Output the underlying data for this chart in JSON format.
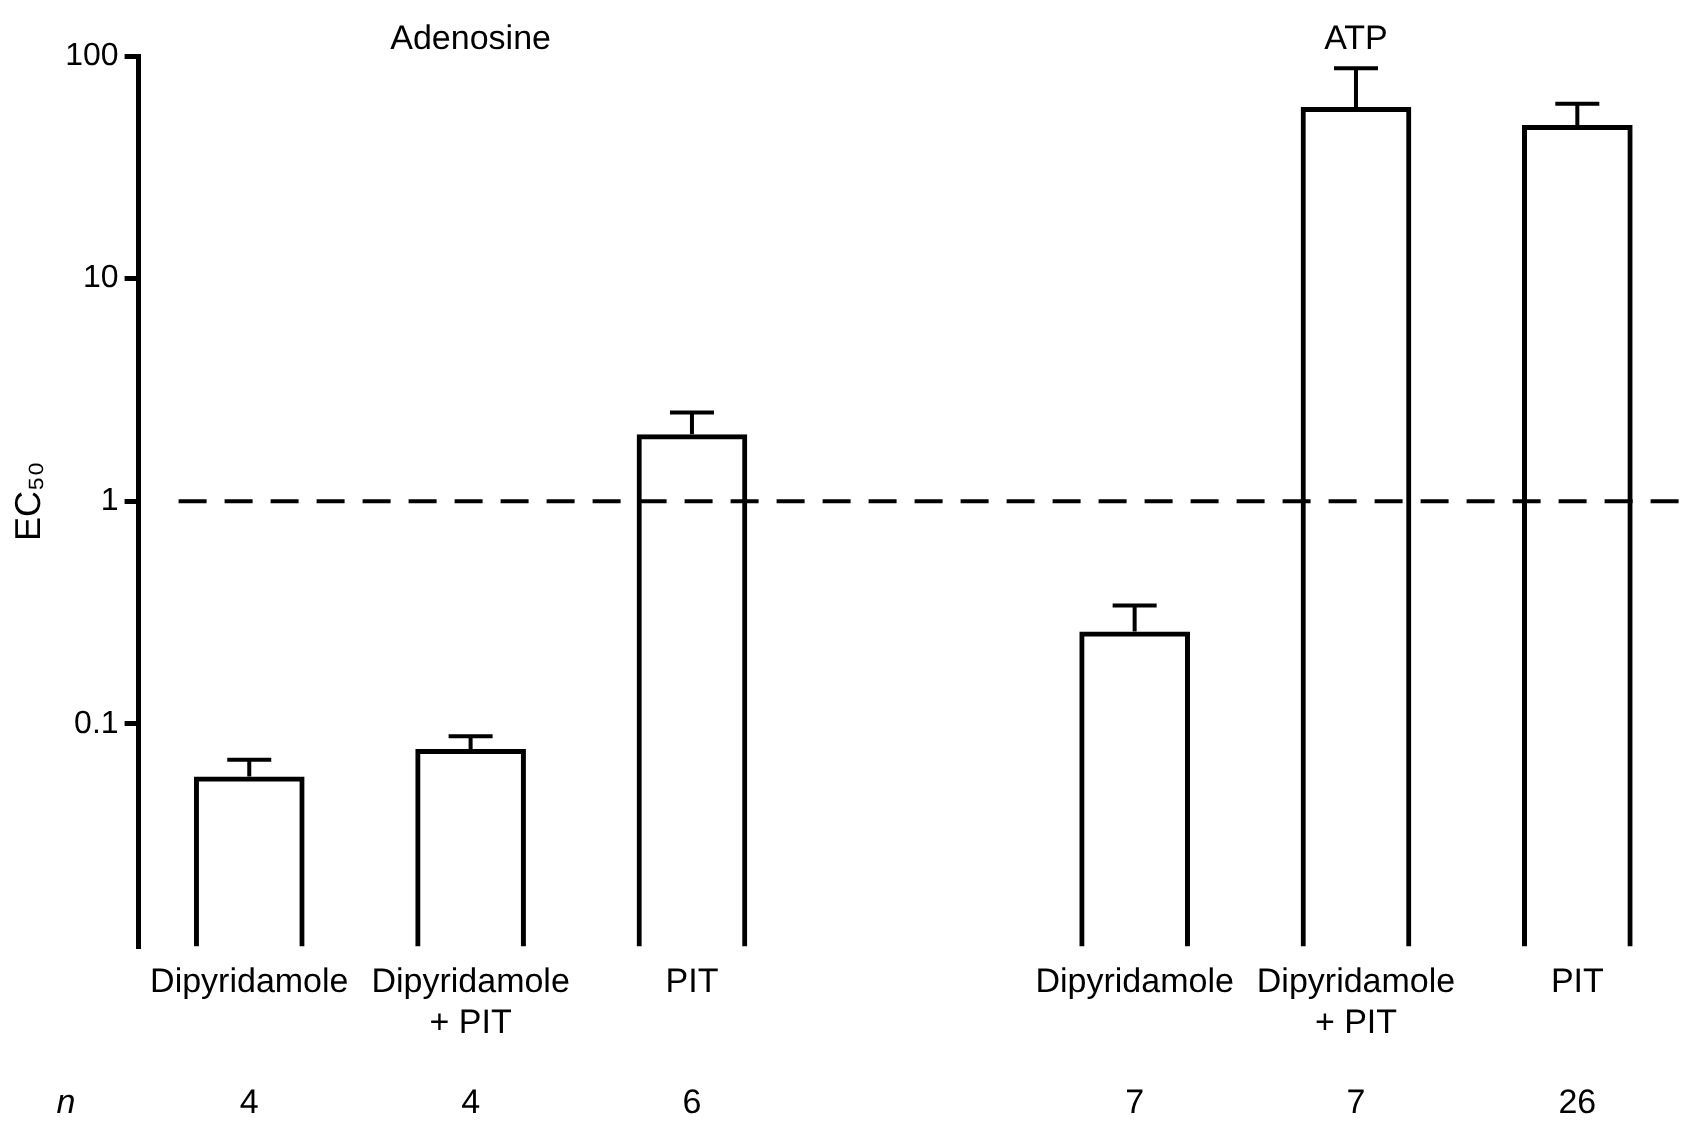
{
  "chart_data": {
    "type": "bar",
    "categories": [
      "Dipyridamole",
      "Dipyridamole + PIT",
      "PIT",
      null,
      "Dipyridamole",
      "Dipyridamole + PIT",
      "PIT"
    ],
    "values": [
      0.058,
      0.077,
      2.0,
      null,
      0.26,
      59,
      49
    ],
    "errors": [
      [
        0.058,
        0.069
      ],
      [
        0.077,
        0.088
      ],
      [
        2.0,
        2.5
      ],
      null,
      [
        0.26,
        0.34
      ],
      [
        59,
        88
      ],
      [
        49,
        61
      ]
    ],
    "color": "#000000",
    "ylabel": "EC₅₀",
    "log": "y",
    "ylim": [
      0.01,
      100
    ],
    "yticks": [
      0.1,
      1,
      10,
      100
    ],
    "grid": false,
    "legend": false,
    "ref_lines": [
      {
        "axis": "y",
        "value": 1,
        "line_style": "dashed",
        "color": "#000000"
      }
    ],
    "annotations": [
      "Adenosine",
      "ATP",
      "n",
      "4",
      "4",
      "6",
      "7",
      "7",
      "26"
    ]
  }
}
